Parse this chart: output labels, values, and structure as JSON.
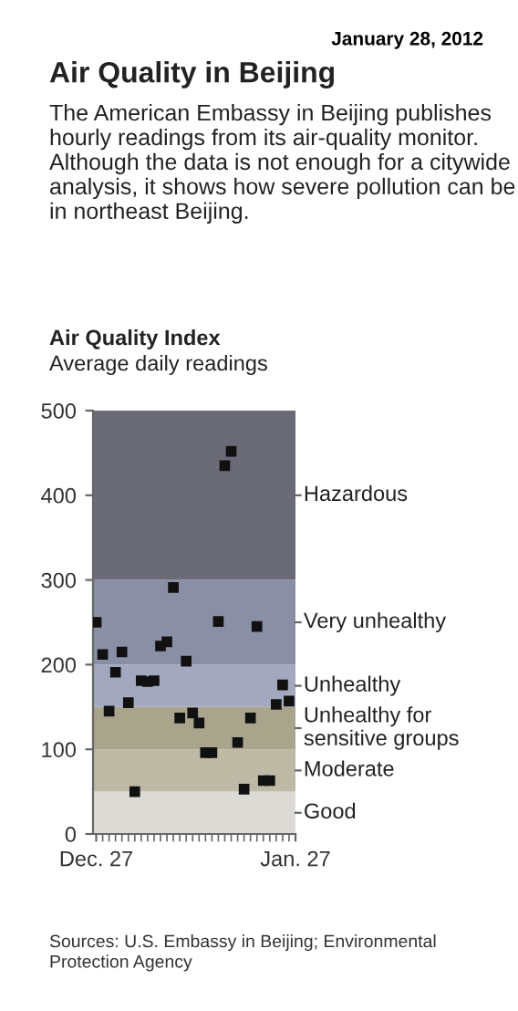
{
  "chart_data": {
    "type": "scatter",
    "title": "Air Quality in Beijing",
    "subtitle": "The American Embassy in Beijing publishes hourly readings from its air-quality monitor. Although the data is not enough for a citywide analysis, it shows how severe pollution can be in northeast Beijing.",
    "ylabel": "Air Quality Index",
    "annotations": [
      "January 28, 2012",
      "Average daily readings",
      "Sources: U.S. Embassy in Beijing; Environmental Protection Agency"
    ],
    "x": [
      "2011-12-27",
      "2011-12-28",
      "2011-12-29",
      "2011-12-30",
      "2011-12-31",
      "2012-01-01",
      "2012-01-02",
      "2012-01-03",
      "2012-01-04",
      "2012-01-05",
      "2012-01-06",
      "2012-01-07",
      "2012-01-08",
      "2012-01-09",
      "2012-01-10",
      "2012-01-11",
      "2012-01-12",
      "2012-01-13",
      "2012-01-14",
      "2012-01-15",
      "2012-01-16",
      "2012-01-17",
      "2012-01-18",
      "2012-01-19",
      "2012-01-20",
      "2012-01-21",
      "2012-01-22",
      "2012-01-23",
      "2012-01-24",
      "2012-01-25",
      "2012-01-26"
    ],
    "series": [
      {
        "color": "#111111",
        "values": [
          250,
          212,
          145,
          191,
          215,
          155,
          50,
          181,
          180,
          181,
          222,
          227,
          291,
          137,
          204,
          143,
          131,
          96,
          96,
          251,
          435,
          452,
          108,
          53,
          137,
          245,
          63,
          63,
          153,
          176,
          157
        ]
      }
    ],
    "marker": "square",
    "xlim": [
      "2011-12-26T12:00",
      "2012-01-27"
    ],
    "xticks": [
      {
        "value": "2011-12-27",
        "label": "Dec. 27"
      },
      {
        "value": "2012-01-27",
        "label": "Jan. 27"
      }
    ],
    "ylim": [
      0,
      500
    ],
    "yticks": [
      0,
      100,
      200,
      300,
      400,
      500
    ],
    "bands": [
      {
        "axis": "y",
        "from": 0,
        "to": 50,
        "label": "Good",
        "color": "#dcdad5"
      },
      {
        "axis": "y",
        "from": 50,
        "to": 100,
        "label": "Moderate",
        "color": "#bdb9a4"
      },
      {
        "axis": "y",
        "from": 100,
        "to": 150,
        "label": "Unhealthy for sensitive groups",
        "color": "#a9a58c"
      },
      {
        "axis": "y",
        "from": 150,
        "to": 200,
        "label": "Unhealthy",
        "color": "#a3a8bf"
      },
      {
        "axis": "y",
        "from": 200,
        "to": 300,
        "label": "Very unhealthy",
        "color": "#8b8fa6"
      },
      {
        "axis": "y",
        "from": 300,
        "to": 500,
        "label": "Hazardous",
        "color": "#6b6b78"
      }
    ],
    "grid": false,
    "legend": false
  }
}
